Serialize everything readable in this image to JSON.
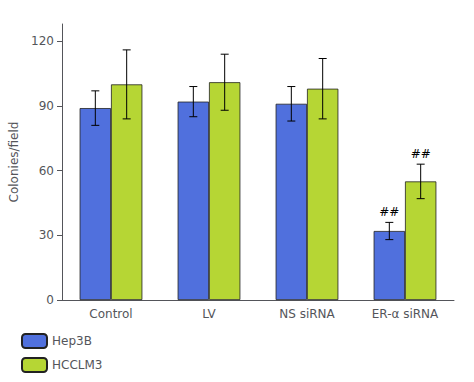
{
  "chart_data": {
    "type": "bar",
    "categories": [
      "Control",
      "LV",
      "NS siRNA",
      "ER-α siRNA"
    ],
    "series": [
      {
        "name": "Hep3B",
        "values": [
          89,
          92,
          91,
          32
        ],
        "errors": [
          8,
          7,
          8,
          4
        ]
      },
      {
        "name": "HCCLM3",
        "values": [
          100,
          101,
          98,
          55
        ],
        "errors": [
          16,
          13,
          14,
          8
        ]
      }
    ],
    "ylabel": "Colonies/field",
    "ylim": [
      0,
      128
    ],
    "yticks": [
      0,
      30,
      60,
      90,
      120
    ],
    "grid": false,
    "legend": "lower left",
    "annotations": [
      {
        "category": "ER-α siRNA",
        "series": "Hep3B",
        "text": "##"
      },
      {
        "category": "ER-α siRNA",
        "series": "HCCLM3",
        "text": "##"
      }
    ]
  }
}
